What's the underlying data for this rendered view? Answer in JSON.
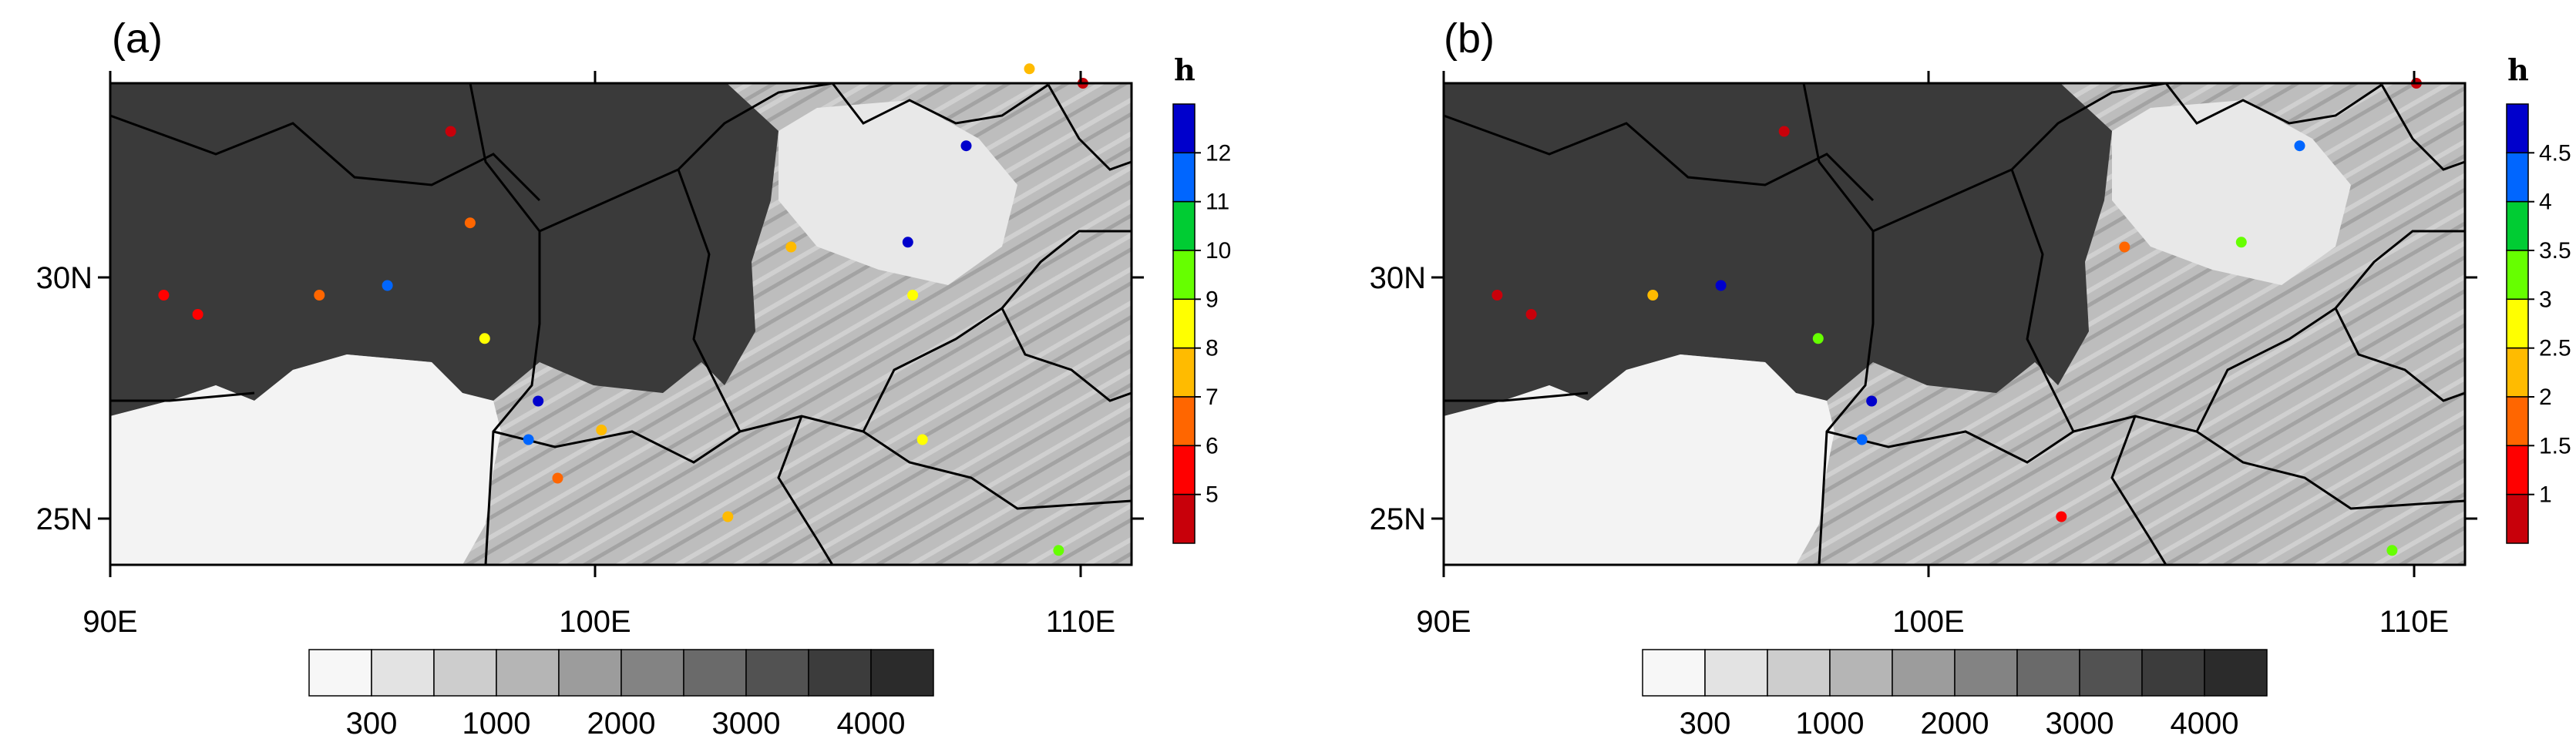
{
  "figure": {
    "panels": [
      {
        "label": "(a)",
        "colorbar": {
          "unit": "h",
          "ticks": [
            "5",
            "6",
            "7",
            "8",
            "9",
            "10",
            "11",
            "12"
          ],
          "colors": [
            "#c8000a",
            "#ff0000",
            "#ff6600",
            "#ffbb00",
            "#ffff00",
            "#66ff00",
            "#00cc33",
            "#0066ff",
            "#0000cc"
          ]
        }
      },
      {
        "label": "(b)",
        "colorbar": {
          "unit": "h",
          "ticks": [
            "1",
            "1.5",
            "2",
            "2.5",
            "3",
            "3.5",
            "4",
            "4.5"
          ],
          "colors": [
            "#c8000a",
            "#ff0000",
            "#ff6600",
            "#ffbb00",
            "#ffff00",
            "#66ff00",
            "#00cc33",
            "#0066ff",
            "#0000cc"
          ]
        }
      }
    ],
    "axis": {
      "x_ticks": [
        "90E",
        "100E",
        "110E"
      ],
      "y_ticks": [
        "30N",
        "25N"
      ]
    },
    "elevation_colorbar": {
      "ticks": [
        "300",
        "1000",
        "2000",
        "3000",
        "4000"
      ],
      "colors": [
        "#f7f7f7",
        "#e3e3e3",
        "#cdcdcd",
        "#b5b5b5",
        "#9c9c9c",
        "#838383",
        "#6a6a6a",
        "#525252",
        "#3c3c3c",
        "#2b2b2b"
      ]
    }
  },
  "chart_data": [
    {
      "type": "scatter",
      "title": "(a)",
      "xlim": [
        90,
        111
      ],
      "ylim": [
        24,
        34
      ],
      "x_ticks": [
        90,
        100,
        110
      ],
      "y_ticks": [
        25,
        30
      ],
      "colorbar_label": "h",
      "colorbar_bounds": [
        5,
        6,
        7,
        8,
        9,
        10,
        11,
        12
      ],
      "points": [
        {
          "lon": 91.1,
          "lat": 29.6,
          "class": 1
        },
        {
          "lon": 91.8,
          "lat": 29.2,
          "class": 1
        },
        {
          "lon": 94.3,
          "lat": 29.6,
          "class": 2
        },
        {
          "lon": 95.7,
          "lat": 29.8,
          "class": 7
        },
        {
          "lon": 97.0,
          "lat": 33.0,
          "class": 0
        },
        {
          "lon": 97.4,
          "lat": 31.1,
          "class": 2
        },
        {
          "lon": 97.7,
          "lat": 28.7,
          "class": 4
        },
        {
          "lon": 98.6,
          "lat": 26.6,
          "class": 7
        },
        {
          "lon": 98.8,
          "lat": 27.4,
          "class": 8
        },
        {
          "lon": 99.2,
          "lat": 25.8,
          "class": 2
        },
        {
          "lon": 100.1,
          "lat": 26.8,
          "class": 3
        },
        {
          "lon": 102.7,
          "lat": 25.0,
          "class": 3
        },
        {
          "lon": 104.0,
          "lat": 30.6,
          "class": 3
        },
        {
          "lon": 106.5,
          "lat": 29.6,
          "class": 4
        },
        {
          "lon": 106.7,
          "lat": 26.6,
          "class": 4
        },
        {
          "lon": 108.9,
          "lat": 34.3,
          "class": 3
        },
        {
          "lon": 107.6,
          "lat": 32.7,
          "class": 8
        },
        {
          "lon": 106.4,
          "lat": 30.7,
          "class": 8
        },
        {
          "lon": 109.5,
          "lat": 24.3,
          "class": 5
        },
        {
          "lon": 110.0,
          "lat": 34.0,
          "class": 0
        }
      ]
    },
    {
      "type": "scatter",
      "title": "(b)",
      "xlim": [
        90,
        111
      ],
      "ylim": [
        24,
        34
      ],
      "x_ticks": [
        90,
        100,
        110
      ],
      "y_ticks": [
        25,
        30
      ],
      "colorbar_label": "h",
      "colorbar_bounds": [
        1,
        1.5,
        2,
        2.5,
        3,
        3.5,
        4,
        4.5
      ],
      "points": [
        {
          "lon": 91.1,
          "lat": 29.6,
          "class": 0
        },
        {
          "lon": 91.8,
          "lat": 29.2,
          "class": 0
        },
        {
          "lon": 94.3,
          "lat": 29.6,
          "class": 3
        },
        {
          "lon": 95.7,
          "lat": 29.8,
          "class": 8
        },
        {
          "lon": 97.0,
          "lat": 33.0,
          "class": 0
        },
        {
          "lon": 97.7,
          "lat": 28.7,
          "class": 5
        },
        {
          "lon": 98.8,
          "lat": 27.4,
          "class": 8
        },
        {
          "lon": 98.6,
          "lat": 26.6,
          "class": 7
        },
        {
          "lon": 102.7,
          "lat": 25.0,
          "class": 1
        },
        {
          "lon": 104.0,
          "lat": 30.6,
          "class": 2
        },
        {
          "lon": 106.4,
          "lat": 30.7,
          "class": 5
        },
        {
          "lon": 107.6,
          "lat": 32.7,
          "class": 7
        },
        {
          "lon": 109.5,
          "lat": 24.3,
          "class": 5
        },
        {
          "lon": 110.0,
          "lat": 34.0,
          "class": 0
        }
      ]
    }
  ]
}
